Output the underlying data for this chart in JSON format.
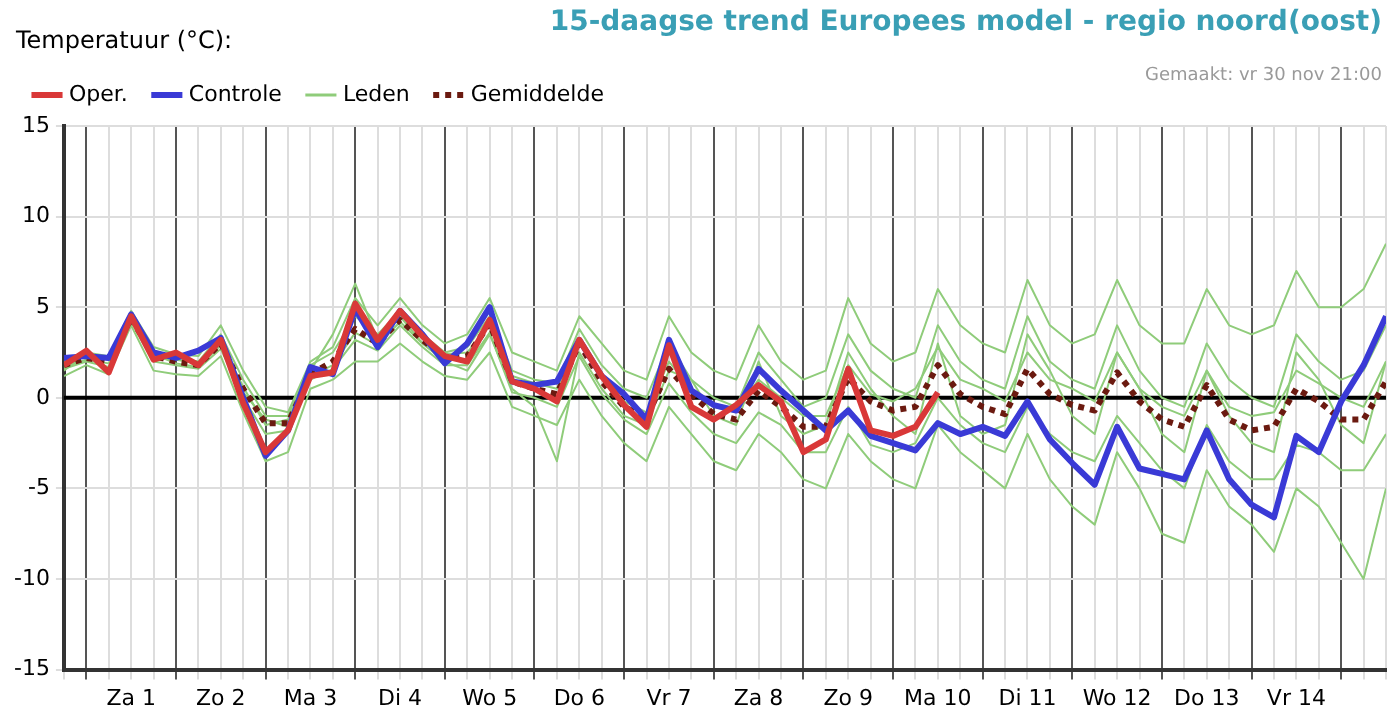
{
  "chart_data": {
    "type": "line",
    "title": "15-daagse trend Europees model - regio noord(oost)",
    "ylabel": "Temperatuur (°C):",
    "annotations": [
      "Gemaakt: vr 30 nov 21:00"
    ],
    "categories": [
      null,
      null,
      null,
      "Za 1",
      null,
      null,
      null,
      "Zo 2",
      null,
      null,
      null,
      "Ma 3",
      null,
      null,
      null,
      "Di 4",
      null,
      null,
      null,
      "Wo 5",
      null,
      null,
      null,
      "Do 6",
      null,
      null,
      null,
      "Vr 7",
      null,
      null,
      null,
      "Za 8",
      null,
      null,
      null,
      "Zo 9",
      null,
      null,
      null,
      "Ma 10",
      null,
      null,
      null,
      "Di 11",
      null,
      null,
      null,
      "Wo 12",
      null,
      null,
      null,
      "Do 13",
      null,
      null,
      null,
      "Vr 14",
      null,
      null,
      null,
      null
    ],
    "ylim": [
      -15,
      15
    ],
    "yticks": [
      -15,
      -10,
      -5,
      0,
      5,
      10,
      15
    ],
    "grid": true,
    "legend": "top left",
    "marker": "none",
    "ref_lines": [
      {
        "axis": "y",
        "value": 0,
        "color": "#000000"
      }
    ],
    "series": [
      {
        "name": "Oper.",
        "color": "#d93838",
        "values": [
          1.8,
          2.6,
          1.4,
          4.5,
          2.1,
          2.5,
          1.8,
          3.2,
          -0.3,
          -3.0,
          -1.8,
          1.2,
          1.4,
          5.2,
          3.2,
          4.8,
          3.4,
          2.3,
          2.0,
          4.3,
          0.9,
          0.5,
          -0.2,
          3.2,
          1.2,
          -0.4,
          -1.6,
          2.9,
          -0.5,
          -1.2,
          -0.4,
          0.7,
          -0.2,
          -3.0,
          -2.3,
          1.6,
          -1.8,
          -2.1,
          -1.6,
          0.3,
          null,
          null,
          null,
          null,
          null,
          null,
          null,
          null,
          null,
          null,
          null,
          null,
          null,
          null,
          null,
          null,
          null,
          null,
          null,
          null
        ]
      },
      {
        "name": "Controle",
        "color": "#3a3ad6",
        "values": [
          2.2,
          2.3,
          2.2,
          4.6,
          2.5,
          2.2,
          2.6,
          3.3,
          0,
          -3.2,
          -1.8,
          1.7,
          1.3,
          4.9,
          2.8,
          4.8,
          3.5,
          1.9,
          3.0,
          5.0,
          0.9,
          0.7,
          0.9,
          3.2,
          1.2,
          0.2,
          -1.2,
          3.2,
          0.4,
          -0.4,
          -0.7,
          1.6,
          0.4,
          -0.7,
          -1.8,
          -0.7,
          -2.1,
          -2.5,
          -2.9,
          -1.4,
          -2.0,
          -1.6,
          -2.1,
          -0.2,
          -2.3,
          -3.6,
          -4.8,
          -1.6,
          -3.9,
          -4.2,
          -4.5,
          -1.8,
          -4.5,
          -5.9,
          -6.6,
          -2.1,
          -3.0,
          -0.2,
          1.8,
          4.5
        ]
      },
      {
        "name": "Leden",
        "color": "#8fcc7a",
        "values": [
          1.5,
          2.5,
          2.3,
          4.8,
          2.8,
          2.4,
          2.3,
          4.0,
          1.5,
          -0.5,
          -0.8,
          2.0,
          2.8,
          5.5,
          4.0,
          5.5,
          4.0,
          3.0,
          3.5,
          5.5,
          2.5,
          2.0,
          1.5,
          4.5,
          3.0,
          1.5,
          1.0,
          4.5,
          2.5,
          1.5,
          1.0,
          4.0,
          2.0,
          1.0,
          1.5,
          5.5,
          3.0,
          2.0,
          2.5,
          6.0,
          4.0,
          3.0,
          2.5,
          6.5,
          4.0,
          3.0,
          3.5,
          6.5,
          4.0,
          3.0,
          3.0,
          6.0,
          4.0,
          3.5,
          4.0,
          7.0,
          5.0,
          5.0,
          6.0,
          8.5
        ]
      },
      {
        "color": "#8fcc7a",
        "values": [
          1.2,
          1.8,
          1.3,
          4.0,
          1.5,
          1.3,
          1.2,
          2.3,
          -0.8,
          -3.5,
          -3.0,
          0.5,
          1.0,
          2.0,
          2.0,
          3.0,
          2.0,
          1.2,
          1.0,
          2.5,
          -0.5,
          -1.0,
          -1.5,
          1.0,
          -1.0,
          -2.5,
          -3.5,
          -0.5,
          -2.0,
          -3.5,
          -4.0,
          -2.0,
          -3.0,
          -4.5,
          -5.0,
          -2.0,
          -3.5,
          -4.5,
          -5.0,
          -1.5,
          -3.0,
          -4.0,
          -5.0,
          -2.0,
          -4.5,
          -6.0,
          -7.0,
          -3.0,
          -5.0,
          -7.5,
          -8.0,
          -4.0,
          -6.0,
          -7.0,
          -8.5,
          -5.0,
          -6.0,
          -8.0,
          -10.0,
          -5.0
        ]
      },
      {
        "color": "#8fcc7a",
        "values": [
          2.0,
          2.4,
          2.1,
          4.6,
          2.5,
          2.2,
          2.0,
          3.5,
          1.0,
          -1.0,
          -1.0,
          1.8,
          2.5,
          4.5,
          3.5,
          4.8,
          3.5,
          2.5,
          2.8,
          4.5,
          1.5,
          1.0,
          0.8,
          3.8,
          1.8,
          0.5,
          0.0,
          3.0,
          1.0,
          0.0,
          -0.5,
          2.5,
          1.0,
          -0.5,
          0.0,
          3.5,
          1.5,
          0.5,
          0.0,
          4.0,
          2.0,
          1.0,
          0.5,
          4.5,
          2.0,
          1.0,
          0.5,
          4.0,
          1.5,
          0.0,
          -0.5,
          3.0,
          1.0,
          0.0,
          -0.5,
          3.5,
          2.0,
          1.0,
          1.5,
          4.0
        ]
      },
      {
        "color": "#8fcc7a",
        "values": [
          1.6,
          2.0,
          1.7,
          4.2,
          2.0,
          1.8,
          1.6,
          2.7,
          0.0,
          -2.0,
          -1.8,
          1.0,
          1.6,
          3.2,
          2.6,
          4.0,
          2.8,
          1.8,
          1.8,
          3.6,
          0.3,
          0.0,
          -0.5,
          2.3,
          0.2,
          -1.2,
          -2.0,
          0.8,
          -0.8,
          -2.0,
          -2.5,
          -0.8,
          -1.5,
          -3.0,
          -3.0,
          -0.5,
          -2.6,
          -3.0,
          -2.5,
          0.0,
          -1.5,
          -2.5,
          -3.0,
          -0.5,
          -2.0,
          -3.0,
          -3.5,
          -1.0,
          -2.5,
          -4.0,
          -5.0,
          -1.5,
          -3.5,
          -4.5,
          -4.5,
          -2.6,
          -3.0,
          -4.0,
          -4.0,
          -2.0
        ]
      },
      {
        "color": "#8fcc7a",
        "values": [
          1.9,
          2.3,
          2.2,
          4.5,
          2.2,
          2.1,
          1.9,
          3.1,
          0.6,
          -1.5,
          -1.2,
          1.5,
          3.5,
          6.3,
          3.2,
          4.5,
          3.0,
          2.0,
          1.5,
          3.5,
          0.5,
          -0.5,
          -3.5,
          2.5,
          0.5,
          -1.0,
          -1.5,
          1.5,
          1.0,
          -1.0,
          -1.5,
          2.0,
          -1.0,
          -2.0,
          -1.5,
          2.5,
          0.5,
          -1.0,
          -2.0,
          3.0,
          -1.0,
          -2.0,
          -1.5,
          3.5,
          1.5,
          -1.0,
          -2.0,
          2.5,
          0.5,
          -2.0,
          -3.0,
          1.5,
          -1.0,
          -2.5,
          -3.0,
          2.5,
          1.0,
          -1.5,
          -2.5,
          2.0
        ]
      },
      {
        "color": "#8fcc7a",
        "values": [
          1.7,
          2.1,
          1.9,
          4.3,
          2.4,
          1.9,
          1.7,
          2.9,
          0.3,
          -1.2,
          -1.6,
          1.2,
          1.8,
          3.6,
          2.9,
          4.2,
          3.0,
          2.4,
          2.5,
          4.0,
          1.2,
          0.8,
          0.5,
          3.2,
          1.2,
          -0.2,
          -0.8,
          2.0,
          0.5,
          -0.5,
          -0.8,
          1.0,
          0.0,
          -1.0,
          -1.0,
          1.8,
          0.2,
          -0.2,
          0.5,
          2.8,
          1.0,
          0.5,
          -0.2,
          2.5,
          1.0,
          0.5,
          -0.2,
          2.5,
          0.5,
          -0.5,
          -1.0,
          1.5,
          -0.5,
          -1.0,
          -0.8,
          1.5,
          0.8,
          0.0,
          -0.5,
          2.0
        ]
      },
      {
        "name": "Gemiddelde",
        "color": "#6b1a10",
        "line_style": "dotted",
        "values": [
          1.8,
          2.2,
          2.0,
          4.4,
          2.3,
          2.0,
          1.8,
          3.0,
          0.5,
          -1.4,
          -1.4,
          1.3,
          2.0,
          3.8,
          3.0,
          4.3,
          3.2,
          2.2,
          2.3,
          4.1,
          0.9,
          0.5,
          0.2,
          3.0,
          0.9,
          -0.5,
          -1.1,
          1.6,
          0.2,
          -0.9,
          -1.2,
          0.4,
          -0.5,
          -1.6,
          -1.6,
          1.1,
          -0.2,
          -0.7,
          -0.5,
          1.8,
          0.2,
          -0.5,
          -0.9,
          1.6,
          0.2,
          -0.4,
          -0.7,
          1.4,
          -0.2,
          -1.2,
          -1.6,
          0.7,
          -1.2,
          -1.8,
          -1.6,
          0.5,
          -0.2,
          -1.2,
          -1.2,
          0.9
        ]
      }
    ]
  }
}
